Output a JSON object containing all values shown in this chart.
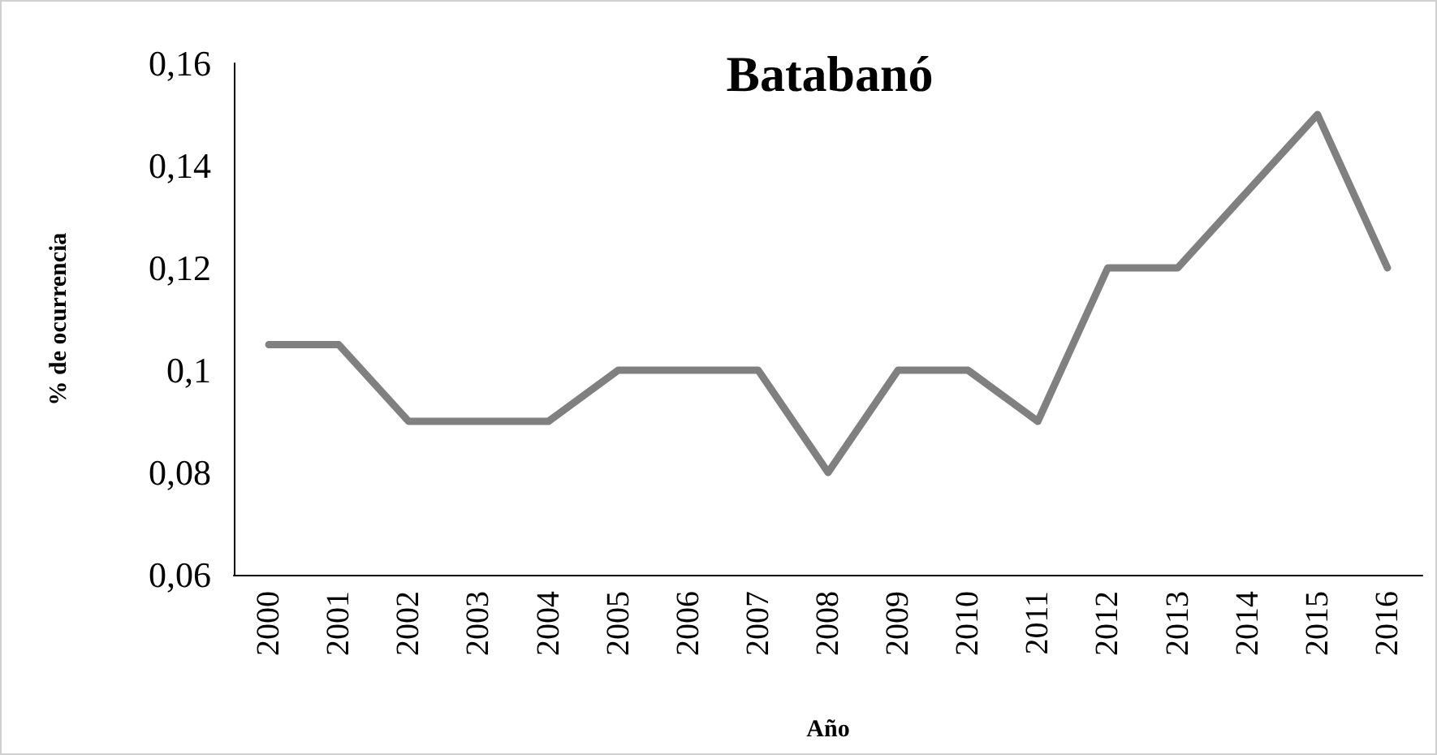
{
  "chart_data": {
    "type": "line",
    "title": "Batabanó",
    "xlabel": "Año",
    "ylabel": "% de ocurrencia",
    "categories": [
      "2000",
      "2001",
      "2002",
      "2003",
      "2004",
      "2005",
      "2006",
      "2007",
      "2008",
      "2009",
      "2010",
      "2011",
      "2012",
      "2013",
      "2014",
      "2015",
      "2016"
    ],
    "series": [
      {
        "color": "#808080",
        "values": [
          0.105,
          0.105,
          0.09,
          0.09,
          0.09,
          0.1,
          0.1,
          0.1,
          0.08,
          0.1,
          0.1,
          0.09,
          0.12,
          0.12,
          0.135,
          0.15,
          0.12
        ]
      }
    ],
    "ylim": [
      0.06,
      0.16
    ],
    "yticks": [
      {
        "value": 0.06,
        "label": "0,06"
      },
      {
        "value": 0.08,
        "label": "0,08"
      },
      {
        "value": 0.1,
        "label": "0,1"
      },
      {
        "value": 0.12,
        "label": "0,12"
      },
      {
        "value": 0.14,
        "label": "0,14"
      },
      {
        "value": 0.16,
        "label": "0,16"
      }
    ],
    "grid": false,
    "marker": "none",
    "line_style": "solid"
  }
}
